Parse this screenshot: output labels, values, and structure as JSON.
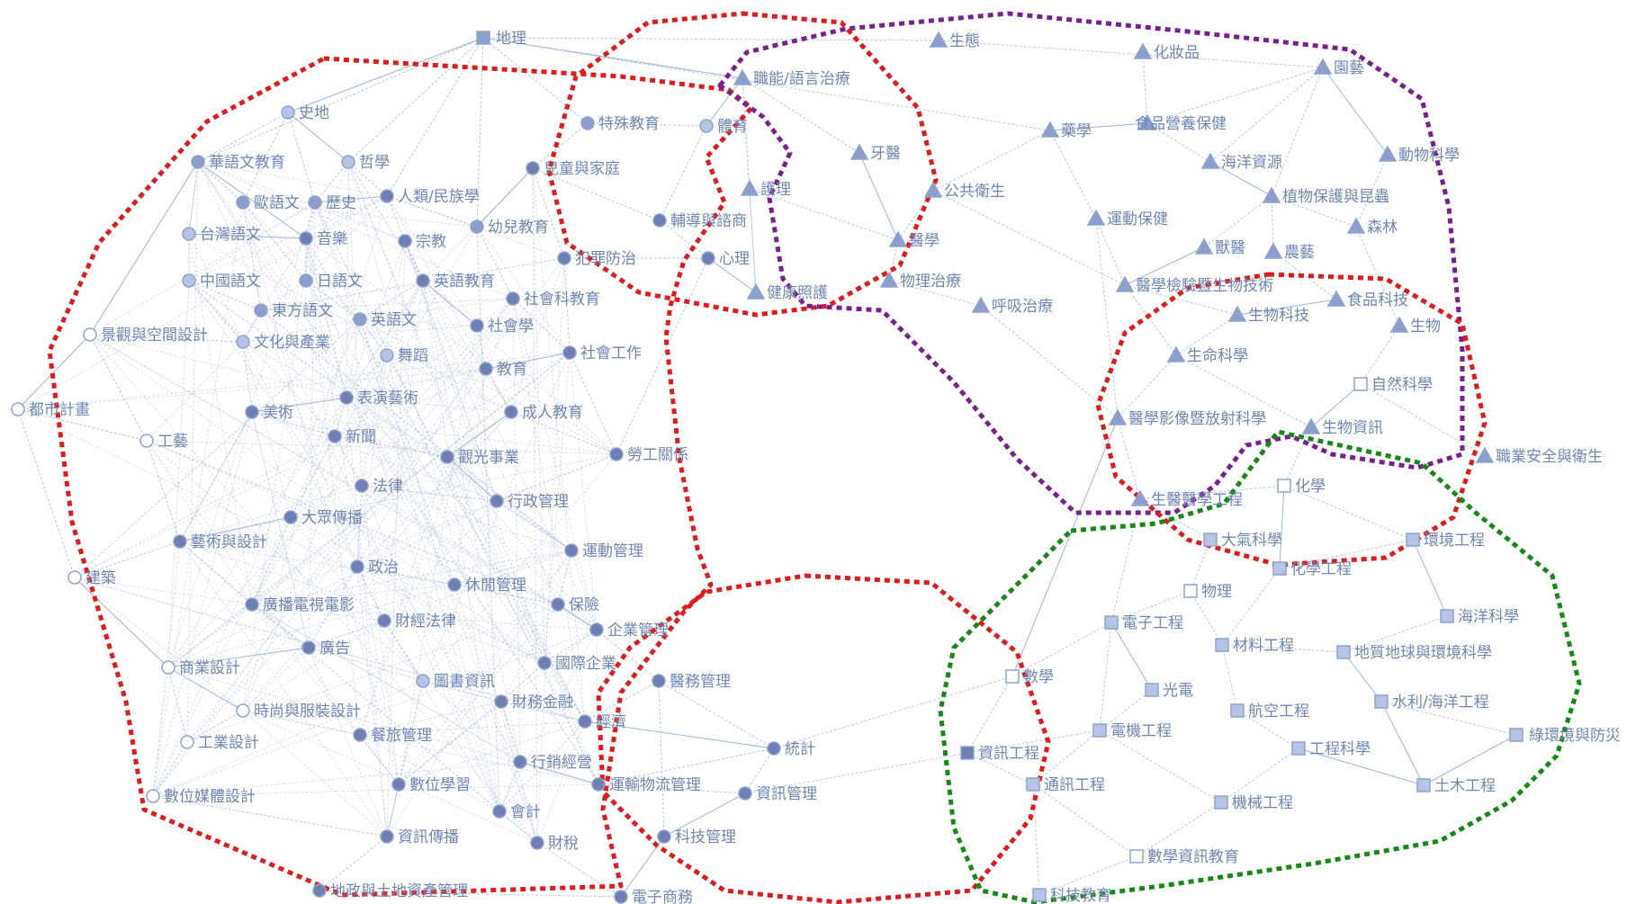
{
  "colors": {
    "red": "#e01b1b",
    "purple": "#7a1f8f",
    "green": "#138a13",
    "node_dark": "#6f7fb3",
    "node_mid": "#8c9fcc",
    "node_light": "#b5c4e4",
    "label": "#6f86b4",
    "edge": "#b8c7e2"
  },
  "nodes": [
    {
      "id": "n_dili",
      "label": "地理",
      "shape": "square",
      "shade": "mid"
    },
    {
      "id": "n_shidi",
      "label": "史地",
      "shape": "circle",
      "shade": "light"
    },
    {
      "id": "n_huayu",
      "label": "華語文教育",
      "shape": "circle",
      "shade": "mid"
    },
    {
      "id": "n_zhexue",
      "label": "哲學",
      "shape": "circle",
      "shade": "light"
    },
    {
      "id": "n_ouyu",
      "label": "歐語文",
      "shape": "circle",
      "shade": "mid"
    },
    {
      "id": "n_lishi",
      "label": "歷史",
      "shape": "circle",
      "shade": "mid"
    },
    {
      "id": "n_renlei",
      "label": "人類/民族學",
      "shape": "circle",
      "shade": "dark"
    },
    {
      "id": "n_taiwan",
      "label": "台灣語文",
      "shape": "circle",
      "shade": "light"
    },
    {
      "id": "n_yinyue",
      "label": "音樂",
      "shape": "circle",
      "shade": "dark"
    },
    {
      "id": "n_zongjiao",
      "label": "宗教",
      "shape": "circle",
      "shade": "dark"
    },
    {
      "id": "n_youer",
      "label": "幼兒教育",
      "shape": "circle",
      "shade": "mid"
    },
    {
      "id": "n_zhongguo",
      "label": "中國語文",
      "shape": "circle",
      "shade": "light"
    },
    {
      "id": "n_riyu",
      "label": "日語文",
      "shape": "circle",
      "shade": "mid"
    },
    {
      "id": "n_yingjiao",
      "label": "英語教育",
      "shape": "circle",
      "shade": "dark"
    },
    {
      "id": "n_dongfang",
      "label": "東方語文",
      "shape": "circle",
      "shade": "mid"
    },
    {
      "id": "n_yingyu",
      "label": "英語文",
      "shape": "circle",
      "shade": "mid"
    },
    {
      "id": "n_shehuike",
      "label": "社會科教育",
      "shape": "circle",
      "shade": "dark"
    },
    {
      "id": "n_shehuixue",
      "label": "社會學",
      "shape": "circle",
      "shade": "dark"
    },
    {
      "id": "n_jingguan",
      "label": "景觀與空間設計",
      "shape": "circle",
      "shade": "white"
    },
    {
      "id": "n_wenhua",
      "label": "文化與產業",
      "shape": "circle",
      "shade": "light"
    },
    {
      "id": "n_wudao",
      "label": "舞蹈",
      "shape": "circle",
      "shade": "light"
    },
    {
      "id": "n_shegong",
      "label": "社會工作",
      "shape": "circle",
      "shade": "dark"
    },
    {
      "id": "n_jiaoyu",
      "label": "教育",
      "shape": "circle",
      "shade": "dark"
    },
    {
      "id": "n_dushi",
      "label": "都市計畫",
      "shape": "circle",
      "shade": "white"
    },
    {
      "id": "n_meishu",
      "label": "美術",
      "shape": "circle",
      "shade": "dark"
    },
    {
      "id": "n_biaoyan",
      "label": "表演藝術",
      "shape": "circle",
      "shade": "dark"
    },
    {
      "id": "n_chengren",
      "label": "成人教育",
      "shape": "circle",
      "shade": "dark"
    },
    {
      "id": "n_gongyi",
      "label": "工藝",
      "shape": "circle",
      "shade": "white"
    },
    {
      "id": "n_xinwen",
      "label": "新聞",
      "shape": "circle",
      "shade": "dark"
    },
    {
      "id": "n_guanguang",
      "label": "觀光事業",
      "shape": "circle",
      "shade": "dark"
    },
    {
      "id": "n_laogong",
      "label": "勞工關係",
      "shape": "circle",
      "shade": "dark"
    },
    {
      "id": "n_falv",
      "label": "法律",
      "shape": "circle",
      "shade": "dark"
    },
    {
      "id": "n_xingzheng",
      "label": "行政管理",
      "shape": "circle",
      "shade": "dark"
    },
    {
      "id": "n_dazhong",
      "label": "大眾傳播",
      "shape": "circle",
      "shade": "dark"
    },
    {
      "id": "n_yishu",
      "label": "藝術與設計",
      "shape": "circle",
      "shade": "dark"
    },
    {
      "id": "n_yundongguanli",
      "label": "運動管理",
      "shape": "circle",
      "shade": "dark"
    },
    {
      "id": "n_jianzhu",
      "label": "建築",
      "shape": "circle",
      "shade": "white"
    },
    {
      "id": "n_zhengzhi",
      "label": "政治",
      "shape": "circle",
      "shade": "dark"
    },
    {
      "id": "n_xiuxian",
      "label": "休閒管理",
      "shape": "circle",
      "shade": "dark"
    },
    {
      "id": "n_guangbo",
      "label": "廣播電視電影",
      "shape": "circle",
      "shade": "dark"
    },
    {
      "id": "n_baoxian",
      "label": "保險",
      "shape": "circle",
      "shade": "dark"
    },
    {
      "id": "n_caijing",
      "label": "財經法律",
      "shape": "circle",
      "shade": "dark"
    },
    {
      "id": "n_qiye",
      "label": "企業管理",
      "shape": "circle",
      "shade": "dark"
    },
    {
      "id": "n_guanggao",
      "label": "廣告",
      "shape": "circle",
      "shade": "dark"
    },
    {
      "id": "n_shangye",
      "label": "商業設計",
      "shape": "circle",
      "shade": "white"
    },
    {
      "id": "n_tushu",
      "label": "圖書資訊",
      "shape": "circle",
      "shade": "light"
    },
    {
      "id": "n_guoji",
      "label": "國際企業",
      "shape": "circle",
      "shade": "dark"
    },
    {
      "id": "n_yiwu",
      "label": "醫務管理",
      "shape": "circle",
      "shade": "dark"
    },
    {
      "id": "n_shishang",
      "label": "時尚與服裝設計",
      "shape": "circle",
      "shade": "white"
    },
    {
      "id": "n_caiwu",
      "label": "財務金融",
      "shape": "circle",
      "shade": "dark"
    },
    {
      "id": "n_jingji",
      "label": "經濟",
      "shape": "circle",
      "shade": "dark"
    },
    {
      "id": "n_canlv",
      "label": "餐旅管理",
      "shape": "circle",
      "shade": "dark"
    },
    {
      "id": "n_gongyesheji",
      "label": "工業設計",
      "shape": "circle",
      "shade": "white"
    },
    {
      "id": "n_tongji",
      "label": "統計",
      "shape": "circle",
      "shade": "dark"
    },
    {
      "id": "n_xingxiao",
      "label": "行銷經營",
      "shape": "circle",
      "shade": "dark"
    },
    {
      "id": "n_shuwei",
      "label": "數位學習",
      "shape": "circle",
      "shade": "dark"
    },
    {
      "id": "n_shuweimeiti",
      "label": "數位媒體設計",
      "shape": "circle",
      "shade": "white"
    },
    {
      "id": "n_yunshu",
      "label": "運輸物流管理",
      "shape": "circle",
      "shade": "dark"
    },
    {
      "id": "n_zixunguanli",
      "label": "資訊管理",
      "shape": "circle",
      "shade": "dark"
    },
    {
      "id": "n_kuaiji",
      "label": "會計",
      "shape": "circle",
      "shade": "dark"
    },
    {
      "id": "n_zixunchuanbo",
      "label": "資訊傳播",
      "shape": "circle",
      "shade": "dark"
    },
    {
      "id": "n_caishui",
      "label": "財稅",
      "shape": "circle",
      "shade": "dark"
    },
    {
      "id": "n_keji",
      "label": "科技管理",
      "shape": "circle",
      "shade": "dark"
    },
    {
      "id": "n_dizheng",
      "label": "地政與土地資產管理",
      "shape": "circle",
      "shade": "dark"
    },
    {
      "id": "n_dianzishangwu",
      "label": "電子商務",
      "shape": "circle",
      "shade": "dark"
    },
    {
      "id": "n_teshu",
      "label": "特殊教育",
      "shape": "circle",
      "shade": "mid"
    },
    {
      "id": "n_tiyu",
      "label": "體育",
      "shape": "circle",
      "shade": "light"
    },
    {
      "id": "n_ertong",
      "label": "兒童與家庭",
      "shape": "circle",
      "shade": "dark"
    },
    {
      "id": "n_fudao",
      "label": "輔導與諮商",
      "shape": "circle",
      "shade": "dark"
    },
    {
      "id": "n_fanzui",
      "label": "犯罪防治",
      "shape": "circle",
      "shade": "dark"
    },
    {
      "id": "n_xinli",
      "label": "心理",
      "shape": "circle",
      "shade": "dark"
    },
    {
      "id": "n_zhineng",
      "label": "職能/語言治療",
      "shape": "triangle",
      "shade": "mid"
    },
    {
      "id": "n_yaxue",
      "label": "牙醫",
      "shape": "triangle",
      "shade": "mid"
    },
    {
      "id": "n_huli",
      "label": "護理",
      "shape": "triangle",
      "shade": "mid"
    },
    {
      "id": "n_yixue",
      "label": "醫學",
      "shape": "triangle",
      "shade": "mid"
    },
    {
      "id": "n_jiankang",
      "label": "健康照護",
      "shape": "triangle",
      "shade": "mid"
    },
    {
      "id": "n_wulizhiliao",
      "label": "物理治療",
      "shape": "triangle",
      "shade": "mid"
    },
    {
      "id": "n_huxi",
      "label": "呼吸治療",
      "shape": "triangle",
      "shade": "mid"
    },
    {
      "id": "n_gonggong",
      "label": "公共衛生",
      "shape": "triangle",
      "shade": "mid"
    },
    {
      "id": "n_yaoxue",
      "label": "藥學",
      "shape": "triangle",
      "shade": "mid"
    },
    {
      "id": "n_shengtai",
      "label": "生態",
      "shape": "triangle",
      "shade": "mid"
    },
    {
      "id": "n_huazhuangpin",
      "label": "化妝品",
      "shape": "triangle",
      "shade": "mid"
    },
    {
      "id": "n_yuanyi",
      "label": "園藝",
      "shape": "triangle",
      "shade": "mid"
    },
    {
      "id": "n_shipin",
      "label": "食品營養保健",
      "shape": "triangle",
      "shade": "mid"
    },
    {
      "id": "n_dongwu",
      "label": "動物科學",
      "shape": "triangle",
      "shade": "mid"
    },
    {
      "id": "n_haiyangziyuan",
      "label": "海洋資源",
      "shape": "triangle",
      "shade": "mid"
    },
    {
      "id": "n_zhiwu",
      "label": "植物保護與昆蟲",
      "shape": "triangle",
      "shade": "mid"
    },
    {
      "id": "n_yundongbaojian",
      "label": "運動保健",
      "shape": "triangle",
      "shade": "mid"
    },
    {
      "id": "n_senlin",
      "label": "森林",
      "shape": "triangle",
      "shade": "mid"
    },
    {
      "id": "n_shouyi",
      "label": "獸醫",
      "shape": "triangle",
      "shade": "mid"
    },
    {
      "id": "n_nongyi",
      "label": "農藝",
      "shape": "triangle",
      "shade": "mid"
    },
    {
      "id": "n_yixuejianyan",
      "label": "醫學檢驗暨生物技術",
      "shape": "triangle",
      "shade": "mid"
    },
    {
      "id": "n_shipinkeji",
      "label": "食品科技",
      "shape": "triangle",
      "shade": "mid"
    },
    {
      "id": "n_shengwukeji",
      "label": "生物科技",
      "shape": "triangle",
      "shade": "mid"
    },
    {
      "id": "n_shengwu",
      "label": "生物",
      "shape": "triangle",
      "shade": "mid"
    },
    {
      "id": "n_shengming",
      "label": "生命科學",
      "shape": "triangle",
      "shade": "mid"
    },
    {
      "id": "n_ziran",
      "label": "自然科學",
      "shape": "square",
      "shade": "white"
    },
    {
      "id": "n_yixueyingxiang",
      "label": "醫學影像暨放射科學",
      "shape": "triangle",
      "shade": "mid"
    },
    {
      "id": "n_shengwuzixun",
      "label": "生物資訊",
      "shape": "triangle",
      "shade": "mid"
    },
    {
      "id": "n_zhiye",
      "label": "職業安全與衛生",
      "shape": "triangle",
      "shade": "mid"
    },
    {
      "id": "n_huaxue",
      "label": "化學",
      "shape": "square",
      "shade": "white"
    },
    {
      "id": "n_shengyi",
      "label": "生醫醫學工程",
      "shape": "triangle",
      "shade": "mid"
    },
    {
      "id": "n_daqi",
      "label": "大氣科學",
      "shape": "square",
      "shade": "light"
    },
    {
      "id": "n_huanjing",
      "label": "環境工程",
      "shape": "square",
      "shade": "light"
    },
    {
      "id": "n_huagong",
      "label": "化學工程",
      "shape": "square",
      "shade": "light"
    },
    {
      "id": "n_wuli",
      "label": "物理",
      "shape": "square",
      "shade": "white"
    },
    {
      "id": "n_haiyangkexue",
      "label": "海洋科學",
      "shape": "square",
      "shade": "light"
    },
    {
      "id": "n_dianzi",
      "label": "電子工程",
      "shape": "square",
      "shade": "light"
    },
    {
      "id": "n_cailiao",
      "label": "材料工程",
      "shape": "square",
      "shade": "light"
    },
    {
      "id": "n_dizhi",
      "label": "地質地球與環境科學",
      "shape": "square",
      "shade": "light"
    },
    {
      "id": "n_shuxue",
      "label": "數學",
      "shape": "square",
      "shade": "white"
    },
    {
      "id": "n_guangdian",
      "label": "光電",
      "shape": "square",
      "shade": "light"
    },
    {
      "id": "n_hangkong",
      "label": "航空工程",
      "shape": "square",
      "shade": "light"
    },
    {
      "id": "n_shuili",
      "label": "水利/海洋工程",
      "shape": "square",
      "shade": "light"
    },
    {
      "id": "n_dianji",
      "label": "電機工程",
      "shape": "square",
      "shade": "light"
    },
    {
      "id": "n_luhuanjing",
      "label": "綠環境與防災",
      "shape": "square",
      "shade": "light"
    },
    {
      "id": "n_zixungongcheng",
      "label": "資訊工程",
      "shape": "square",
      "shade": "dark"
    },
    {
      "id": "n_gongchengkexue",
      "label": "工程科學",
      "shape": "square",
      "shade": "light"
    },
    {
      "id": "n_tongxun",
      "label": "通訊工程",
      "shape": "square",
      "shade": "light"
    },
    {
      "id": "n_tumu",
      "label": "土木工程",
      "shape": "square",
      "shade": "light"
    },
    {
      "id": "n_jixie",
      "label": "機械工程",
      "shape": "square",
      "shade": "light"
    },
    {
      "id": "n_shuxuezixun",
      "label": "數學資訊教育",
      "shape": "square",
      "shade": "white"
    },
    {
      "id": "n_kejijiaoyu",
      "label": "科技教育",
      "shape": "square",
      "shade": "light"
    }
  ]
}
